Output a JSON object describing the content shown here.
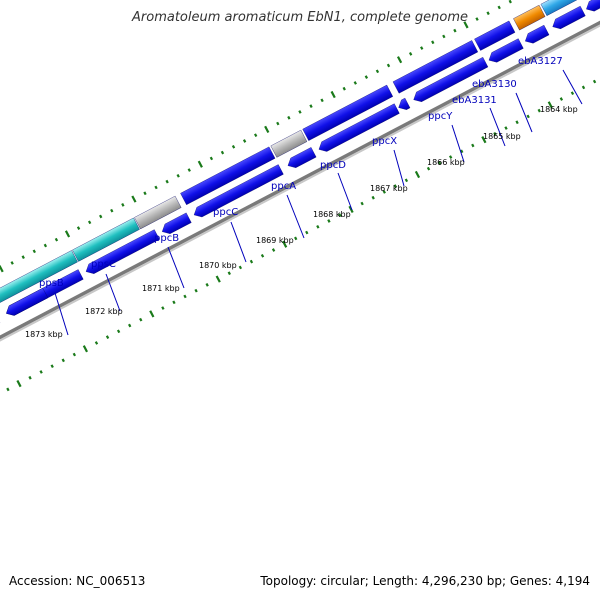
{
  "header": {
    "title": "Aromatoleum aromaticum EbN1, complete genome"
  },
  "footer": {
    "accession": "Accession: NC_006513",
    "stats": "Topology: circular; Length: 4,296,230 bp; Genes: 4,194"
  },
  "map": {
    "kbp_labels": [
      "1864 kbp",
      "1865 kbp",
      "1866 kbp",
      "1867 kbp",
      "1868 kbp",
      "1869 kbp",
      "1870 kbp",
      "1871 kbp",
      "1872 kbp",
      "1873 kbp"
    ],
    "gene_labels": [
      "ebA3127",
      "ebA3130",
      "ebA3131",
      "ppcY",
      "ppcX",
      "ppcD",
      "ppcA",
      "ppcC",
      "ppcB",
      "ppsC",
      "ppsB"
    ],
    "colors": {
      "cds": "#1010e8",
      "cds_light": "#5a5aff",
      "tick": "#1a7a1a",
      "backbone": "#7a7a7a",
      "label": "#0000bb",
      "cyan": "#20c0c0",
      "gray": "#b8b8b8",
      "orange": "#f08a00",
      "skyblue": "#30a8e8"
    }
  }
}
